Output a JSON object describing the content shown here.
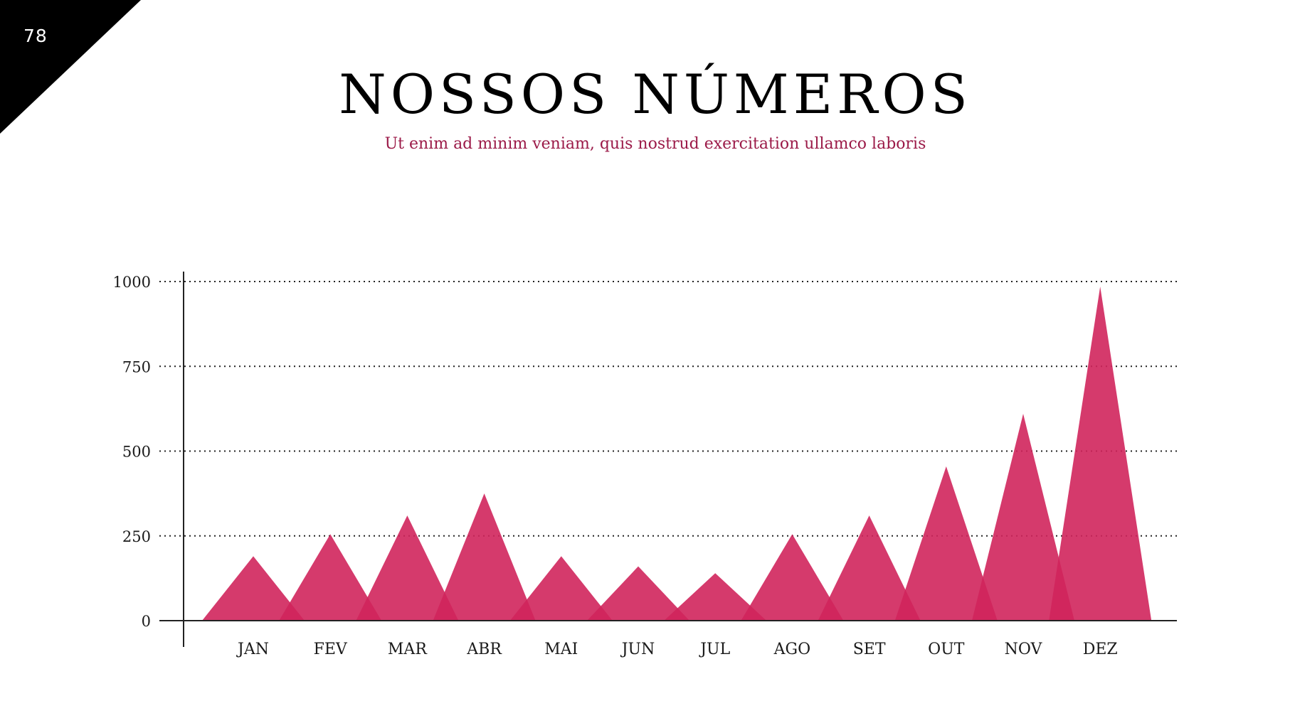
{
  "page": {
    "number": "78",
    "title": "NOSSOS NÚMEROS",
    "subtitle": "Ut enim ad minim veniam, quis nostrud exercitation ullamco laboris"
  },
  "colors": {
    "peak": "#d0255c",
    "subtitle": "#9b1a48",
    "corner": "#000000"
  },
  "chart_data": {
    "type": "area",
    "shape": "triangles",
    "categories": [
      "JAN",
      "FEV",
      "MAR",
      "ABR",
      "MAI",
      "JUN",
      "JUL",
      "AGO",
      "SET",
      "OUT",
      "NOV",
      "DEZ"
    ],
    "values": [
      190,
      255,
      310,
      375,
      190,
      160,
      140,
      255,
      310,
      455,
      610,
      985
    ],
    "ylim": [
      0,
      1000
    ],
    "yticks": [
      0,
      250,
      500,
      750,
      1000
    ],
    "grid": true,
    "legend": "none"
  }
}
